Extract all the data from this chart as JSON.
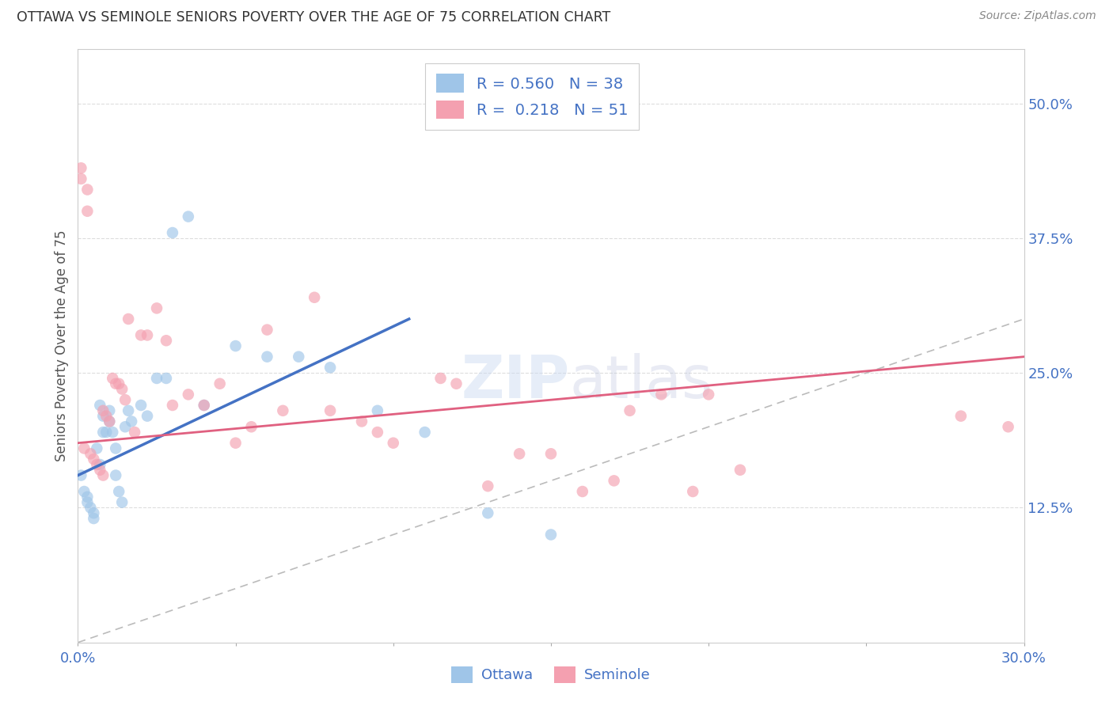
{
  "title": "OTTAWA VS SEMINOLE SENIORS POVERTY OVER THE AGE OF 75 CORRELATION CHART",
  "source": "Source: ZipAtlas.com",
  "ylabel": "Seniors Poverty Over the Age of 75",
  "xlim": [
    0.0,
    0.3
  ],
  "ylim": [
    0.0,
    0.55
  ],
  "xticks": [
    0.0,
    0.05,
    0.1,
    0.15,
    0.2,
    0.25,
    0.3
  ],
  "xticklabels": [
    "0.0%",
    "",
    "",
    "",
    "",
    "",
    "30.0%"
  ],
  "yticks_right": [
    0.125,
    0.25,
    0.375,
    0.5
  ],
  "ytick_labels_right": [
    "12.5%",
    "25.0%",
    "37.5%",
    "50.0%"
  ],
  "legend_r_ottawa": "0.560",
  "legend_n_ottawa": "38",
  "legend_r_seminole": "0.218",
  "legend_n_seminole": "51",
  "ottawa_color": "#9FC5E8",
  "seminole_color": "#F4A0B0",
  "ottawa_line_color": "#4472C4",
  "seminole_line_color": "#E06080",
  "label_color": "#4472C4",
  "background_color": "#FFFFFF",
  "grid_color": "#DDDDDD",
  "scatter_size": 110,
  "scatter_alpha": 0.65,
  "ottawa_x": [
    0.001,
    0.002,
    0.003,
    0.003,
    0.004,
    0.005,
    0.005,
    0.006,
    0.007,
    0.007,
    0.008,
    0.008,
    0.009,
    0.01,
    0.01,
    0.011,
    0.012,
    0.012,
    0.013,
    0.014,
    0.015,
    0.016,
    0.017,
    0.02,
    0.022,
    0.025,
    0.028,
    0.03,
    0.035,
    0.04,
    0.05,
    0.06,
    0.07,
    0.08,
    0.095,
    0.11,
    0.13,
    0.15
  ],
  "ottawa_y": [
    0.155,
    0.14,
    0.135,
    0.13,
    0.125,
    0.12,
    0.115,
    0.18,
    0.165,
    0.22,
    0.195,
    0.21,
    0.195,
    0.215,
    0.205,
    0.195,
    0.18,
    0.155,
    0.14,
    0.13,
    0.2,
    0.215,
    0.205,
    0.22,
    0.21,
    0.245,
    0.245,
    0.38,
    0.395,
    0.22,
    0.275,
    0.265,
    0.265,
    0.255,
    0.215,
    0.195,
    0.12,
    0.1
  ],
  "seminole_x": [
    0.001,
    0.001,
    0.002,
    0.003,
    0.003,
    0.004,
    0.005,
    0.006,
    0.007,
    0.008,
    0.008,
    0.009,
    0.01,
    0.011,
    0.012,
    0.013,
    0.014,
    0.015,
    0.016,
    0.018,
    0.02,
    0.022,
    0.025,
    0.028,
    0.03,
    0.035,
    0.04,
    0.045,
    0.05,
    0.055,
    0.06,
    0.065,
    0.075,
    0.08,
    0.09,
    0.095,
    0.1,
    0.115,
    0.12,
    0.13,
    0.14,
    0.15,
    0.16,
    0.17,
    0.175,
    0.185,
    0.195,
    0.2,
    0.21,
    0.28,
    0.295
  ],
  "seminole_y": [
    0.44,
    0.43,
    0.18,
    0.42,
    0.4,
    0.175,
    0.17,
    0.165,
    0.16,
    0.155,
    0.215,
    0.21,
    0.205,
    0.245,
    0.24,
    0.24,
    0.235,
    0.225,
    0.3,
    0.195,
    0.285,
    0.285,
    0.31,
    0.28,
    0.22,
    0.23,
    0.22,
    0.24,
    0.185,
    0.2,
    0.29,
    0.215,
    0.32,
    0.215,
    0.205,
    0.195,
    0.185,
    0.245,
    0.24,
    0.145,
    0.175,
    0.175,
    0.14,
    0.15,
    0.215,
    0.23,
    0.14,
    0.23,
    0.16,
    0.21,
    0.2
  ],
  "ottawa_trendline_x": [
    0.0,
    0.105
  ],
  "ottawa_trendline_y": [
    0.155,
    0.3
  ],
  "seminole_trendline_x": [
    0.0,
    0.3
  ],
  "seminole_trendline_y": [
    0.185,
    0.265
  ]
}
